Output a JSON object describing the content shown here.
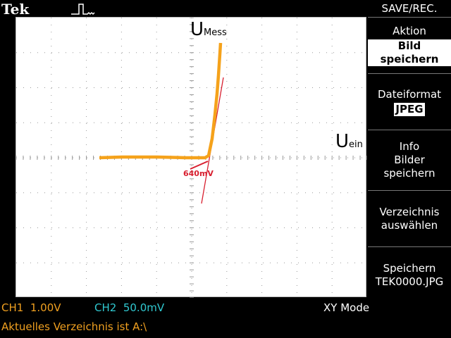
{
  "brand": "Tek",
  "screen": {
    "labels": {
      "u_mess_main": "U",
      "u_mess_sub": "Mess",
      "u_ein_main": "U",
      "u_ein_sub": "ein",
      "annotation": "640mV"
    },
    "colors": {
      "trace": "#f5a21b",
      "annotation": "#d82030",
      "grid": "#9a9a9a"
    }
  },
  "menu": {
    "title": "SAVE/REC.",
    "aktion": {
      "label": "Aktion",
      "value": "Bild speichern"
    },
    "dateiformat": {
      "label": "Dateiformat",
      "value": "JPEG"
    },
    "info": {
      "line1": "Info",
      "line2": "Bilder",
      "line3": "speichern"
    },
    "verzeichnis": {
      "line1": "Verzeichnis",
      "line2": "auswählen"
    },
    "speichern": {
      "line1": "Speichern",
      "line2": "TEK0000.JPG"
    }
  },
  "status": {
    "ch1": "CH1  1.00V",
    "ch2": "CH2  50.0mV",
    "mode": "XY Mode",
    "directory": "Aktuelles Verzeichnis ist A:\\"
  }
}
